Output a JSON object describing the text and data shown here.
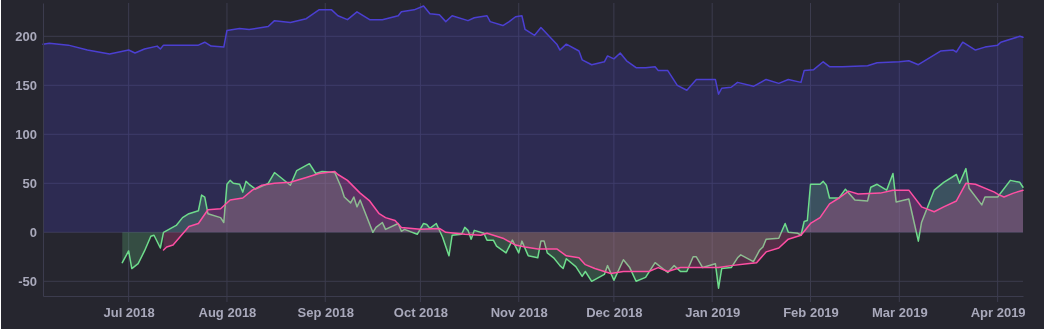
{
  "chart_data": {
    "type": "area",
    "xlim": [
      "2018-06-04",
      "2019-04-09"
    ],
    "ylim": [
      -65,
      234
    ],
    "yticks": [
      -50,
      0,
      50,
      100,
      150,
      200
    ],
    "xticks": [
      {
        "value": "2018-07-01",
        "label": "Jul 2018"
      },
      {
        "value": "2018-08-01",
        "label": "Aug 2018"
      },
      {
        "value": "2018-09-01",
        "label": "Sep 2018"
      },
      {
        "value": "2018-10-01",
        "label": "Oct 2018"
      },
      {
        "value": "2018-11-01",
        "label": "Nov 2018"
      },
      {
        "value": "2018-12-01",
        "label": "Dec 2018"
      },
      {
        "value": "2019-01-01",
        "label": "Jan 2019"
      },
      {
        "value": "2019-02-01",
        "label": "Feb 2019"
      },
      {
        "value": "2019-03-01",
        "label": "Mar 2019"
      },
      {
        "value": "2019-04-01",
        "label": "Apr 2019"
      }
    ],
    "grid": true,
    "series": [
      {
        "color": "#4b3fd1",
        "x": [
          "2018-06-04",
          "2018-06-06",
          "2018-06-12",
          "2018-06-18",
          "2018-06-25",
          "2018-07-01",
          "2018-07-03",
          "2018-07-06",
          "2018-07-10",
          "2018-07-11",
          "2018-07-12",
          "2018-07-23",
          "2018-07-25",
          "2018-07-27",
          "2018-07-31",
          "2018-08-01",
          "2018-08-05",
          "2018-08-08",
          "2018-08-14",
          "2018-08-16",
          "2018-08-21",
          "2018-08-26",
          "2018-08-30",
          "2018-09-03",
          "2018-09-05",
          "2018-09-08",
          "2018-09-11",
          "2018-09-15",
          "2018-09-19",
          "2018-09-24",
          "2018-09-25",
          "2018-09-29",
          "2018-10-02",
          "2018-10-04",
          "2018-10-07",
          "2018-10-09",
          "2018-10-11",
          "2018-10-16",
          "2018-10-18",
          "2018-10-22",
          "2018-10-23",
          "2018-10-27",
          "2018-10-29",
          "2018-10-31",
          "2018-11-02",
          "2018-11-03",
          "2018-11-06",
          "2018-11-08",
          "2018-11-13",
          "2018-11-14",
          "2018-11-16",
          "2018-11-20",
          "2018-11-21",
          "2018-11-24",
          "2018-11-28",
          "2018-11-29",
          "2018-12-01",
          "2018-12-03",
          "2018-12-05",
          "2018-12-08",
          "2018-12-11",
          "2018-12-14",
          "2018-12-15",
          "2018-12-18",
          "2018-12-21",
          "2018-12-24",
          "2018-12-27",
          "2019-01-02",
          "2019-01-03",
          "2019-01-04",
          "2019-01-07",
          "2019-01-09",
          "2019-01-14",
          "2019-01-18",
          "2019-01-22",
          "2019-01-25",
          "2019-01-29",
          "2019-01-30",
          "2019-02-02",
          "2019-02-05",
          "2019-02-07",
          "2019-02-11",
          "2019-02-19",
          "2019-02-22",
          "2019-03-01",
          "2019-03-04",
          "2019-03-07",
          "2019-03-14",
          "2019-03-18",
          "2019-03-19",
          "2019-03-21",
          "2019-03-25",
          "2019-03-28",
          "2019-04-01",
          "2019-04-02",
          "2019-04-08",
          "2019-04-09"
        ],
        "values": [
          192,
          193,
          191,
          186,
          182,
          186,
          183,
          187,
          190,
          187,
          191,
          191,
          194,
          190,
          189,
          206,
          208,
          207,
          210,
          216,
          214,
          218,
          227,
          227,
          221,
          217,
          225,
          217,
          217,
          221,
          225,
          227,
          231,
          223,
          222,
          215,
          221,
          216,
          219,
          221,
          215,
          211,
          215,
          220,
          221,
          207,
          201,
          209,
          192,
          186,
          192,
          185,
          176,
          171,
          174,
          180,
          177,
          183,
          175,
          168,
          168,
          169,
          165,
          165,
          150,
          145,
          156,
          156,
          141,
          147,
          148,
          153,
          149,
          156,
          152,
          156,
          153,
          165,
          166,
          174,
          169,
          169,
          170,
          173,
          174,
          175,
          171,
          185,
          186,
          184,
          194,
          186,
          189,
          191,
          194,
          200,
          199
        ]
      },
      {
        "color": "#6edc8c",
        "x": [
          "2018-06-29",
          "2018-07-01",
          "2018-07-02",
          "2018-07-04",
          "2018-07-06",
          "2018-07-08",
          "2018-07-09",
          "2018-07-11",
          "2018-07-12",
          "2018-07-16",
          "2018-07-18",
          "2018-07-20",
          "2018-07-23",
          "2018-07-24",
          "2018-07-25",
          "2018-07-26",
          "2018-07-30",
          "2018-07-31",
          "2018-08-01",
          "2018-08-02",
          "2018-08-03",
          "2018-08-05",
          "2018-08-06",
          "2018-08-07",
          "2018-08-08",
          "2018-08-10",
          "2018-08-14",
          "2018-08-16",
          "2018-08-21",
          "2018-08-23",
          "2018-08-27",
          "2018-08-29",
          "2018-08-31",
          "2018-09-04",
          "2018-09-06",
          "2018-09-07",
          "2018-09-09",
          "2018-09-10",
          "2018-09-11",
          "2018-09-12",
          "2018-09-16",
          "2018-09-17",
          "2018-09-19",
          "2018-09-20",
          "2018-09-24",
          "2018-09-25",
          "2018-09-26",
          "2018-09-30",
          "2018-10-02",
          "2018-10-03",
          "2018-10-04",
          "2018-10-06",
          "2018-10-08",
          "2018-10-10",
          "2018-10-11",
          "2018-10-14",
          "2018-10-15",
          "2018-10-16",
          "2018-10-17",
          "2018-10-18",
          "2018-10-21",
          "2018-10-22",
          "2018-10-24",
          "2018-10-25",
          "2018-10-28",
          "2018-10-30",
          "2018-11-01",
          "2018-11-02",
          "2018-11-04",
          "2018-11-07",
          "2018-11-08",
          "2018-11-09",
          "2018-11-10",
          "2018-11-12",
          "2018-11-14",
          "2018-11-15",
          "2018-11-16",
          "2018-11-19",
          "2018-11-21",
          "2018-11-22",
          "2018-11-24",
          "2018-11-28",
          "2018-11-29",
          "2018-12-01",
          "2018-12-04",
          "2018-12-06",
          "2018-12-08",
          "2018-12-11",
          "2018-12-14",
          "2018-12-18",
          "2018-12-20",
          "2018-12-22",
          "2018-12-24",
          "2018-12-26",
          "2018-12-27",
          "2018-12-29",
          "2019-01-02",
          "2019-01-03",
          "2019-01-04",
          "2019-01-07",
          "2019-01-09",
          "2019-01-10",
          "2019-01-14",
          "2019-01-16",
          "2019-01-17",
          "2019-01-18",
          "2019-01-22",
          "2019-01-24",
          "2019-01-25",
          "2019-01-28",
          "2019-01-29",
          "2019-01-30",
          "2019-01-31",
          "2019-02-01",
          "2019-02-04",
          "2019-02-05",
          "2019-02-06",
          "2019-02-07",
          "2019-02-10",
          "2019-02-12",
          "2019-02-15",
          "2019-02-19",
          "2019-02-20",
          "2019-02-22",
          "2019-02-25",
          "2019-02-27",
          "2019-02-28",
          "2019-03-04",
          "2019-03-07",
          "2019-03-08",
          "2019-03-12",
          "2019-03-15",
          "2019-03-19",
          "2019-03-20",
          "2019-03-22",
          "2019-03-23",
          "2019-03-27",
          "2019-03-28",
          "2019-04-01",
          "2019-04-05",
          "2019-04-08",
          "2019-04-09"
        ],
        "values": [
          -31,
          -19,
          -37,
          -32,
          -19,
          -4,
          -3,
          -16,
          0,
          7,
          15,
          19,
          22,
          38,
          36,
          19,
          15,
          10,
          49,
          53,
          50,
          49,
          41,
          52,
          49,
          44,
          50,
          61,
          48,
          63,
          70,
          60,
          62,
          61,
          46,
          36,
          30,
          36,
          26,
          33,
          0,
          5,
          10,
          3,
          9,
          1,
          3,
          -2,
          9,
          8,
          4,
          9,
          -5,
          -24,
          -3,
          -2,
          5,
          2,
          -7,
          2,
          -1,
          -8,
          -8,
          -14,
          -21,
          -8,
          -21,
          -9,
          -24,
          -26,
          -9,
          -9,
          -21,
          -26,
          -34,
          -37,
          -27,
          -35,
          -45,
          -40,
          -50,
          -43,
          -34,
          -49,
          -28,
          -36,
          -50,
          -46,
          -31,
          -41,
          -34,
          -40,
          -40,
          -25,
          -25,
          -36,
          -32,
          -57,
          -37,
          -36,
          -26,
          -23,
          -30,
          -18,
          -15,
          -7,
          -6,
          9,
          0,
          -1,
          -3,
          11,
          12,
          49,
          49,
          52,
          48,
          35,
          35,
          44,
          33,
          32,
          46,
          49,
          43,
          60,
          31,
          34,
          -9,
          10,
          43,
          51,
          59,
          50,
          65,
          45,
          28,
          36,
          36,
          53,
          51,
          46
        ]
      },
      {
        "color": "#ff4fa3",
        "x": [
          "2018-07-12",
          "2018-07-13",
          "2018-07-15",
          "2018-07-19",
          "2018-07-20",
          "2018-07-23",
          "2018-07-26",
          "2018-07-30",
          "2018-08-02",
          "2018-08-06",
          "2018-08-09",
          "2018-08-12",
          "2018-08-16",
          "2018-08-21",
          "2018-08-26",
          "2018-08-30",
          "2018-09-04",
          "2018-09-05",
          "2018-09-08",
          "2018-09-12",
          "2018-09-15",
          "2018-09-18",
          "2018-09-20",
          "2018-09-23",
          "2018-09-25",
          "2018-10-01",
          "2018-10-07",
          "2018-10-09",
          "2018-10-15",
          "2018-10-20",
          "2018-10-22",
          "2018-10-27",
          "2018-10-31",
          "2018-11-03",
          "2018-11-07",
          "2018-11-13",
          "2018-11-16",
          "2018-11-20",
          "2018-11-22",
          "2018-11-25",
          "2018-11-30",
          "2018-12-04",
          "2018-12-12",
          "2018-12-15",
          "2018-12-18",
          "2018-12-22",
          "2018-12-28",
          "2019-01-03",
          "2019-01-07",
          "2019-01-12",
          "2019-01-15",
          "2019-01-18",
          "2019-01-22",
          "2019-01-25",
          "2019-01-29",
          "2019-02-01",
          "2019-02-04",
          "2019-02-07",
          "2019-02-10",
          "2019-02-13",
          "2019-02-16",
          "2019-02-23",
          "2019-02-27",
          "2019-03-04",
          "2019-03-08",
          "2019-03-12",
          "2019-03-15",
          "2019-03-19",
          "2019-03-22",
          "2019-03-25",
          "2019-03-31",
          "2019-04-01",
          "2019-04-03",
          "2019-04-06",
          "2019-04-09"
        ],
        "values": [
          -18,
          -15,
          -13,
          2,
          6,
          9,
          23,
          24,
          33,
          35,
          43,
          48,
          50,
          51,
          56,
          60,
          62,
          59,
          53,
          40,
          32,
          19,
          15,
          12,
          5,
          3,
          4,
          0,
          -2,
          -3,
          -1,
          -6,
          -13,
          -15,
          -17,
          -17,
          -24,
          -26,
          -33,
          -37,
          -42,
          -40,
          -40,
          -36,
          -40,
          -36,
          -36,
          -36,
          -34,
          -32,
          -31,
          -20,
          -16,
          -7,
          -3,
          9,
          15,
          29,
          35,
          42,
          39,
          40,
          43,
          43,
          26,
          21,
          26,
          32,
          50,
          49,
          41,
          39,
          36,
          40,
          43
        ]
      }
    ]
  }
}
